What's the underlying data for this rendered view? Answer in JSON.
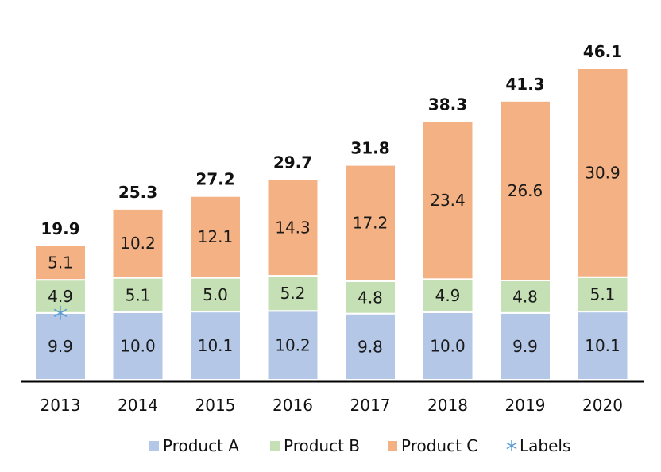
{
  "chart_data": {
    "type": "bar",
    "stacked": true,
    "categories": [
      "2013",
      "2014",
      "2015",
      "2016",
      "2017",
      "2018",
      "2019",
      "2020"
    ],
    "series": [
      {
        "name": "Product A",
        "color": "#b4c7e7",
        "values": [
          9.9,
          10.0,
          10.1,
          10.2,
          9.8,
          10.0,
          9.9,
          10.1
        ]
      },
      {
        "name": "Product B",
        "color": "#c5e0b4",
        "values": [
          4.9,
          5.1,
          5.0,
          5.2,
          4.8,
          4.9,
          4.8,
          5.1
        ]
      },
      {
        "name": "Product C",
        "color": "#f4b183",
        "values": [
          5.1,
          10.2,
          12.1,
          14.3,
          17.2,
          23.4,
          26.6,
          30.9
        ]
      }
    ],
    "segment_labels": [
      [
        "9.9",
        "10.0",
        "10.1",
        "10.2",
        "9.8",
        "10.0",
        "9.9",
        "10.1"
      ],
      [
        "4.9",
        "5.1",
        "5.0",
        "5.2",
        "4.8",
        "4.9",
        "4.8",
        "5.1"
      ],
      [
        "5.1",
        "10.2",
        "12.1",
        "14.3",
        "17.2",
        "23.4",
        "26.6",
        "30.9"
      ]
    ],
    "totals": [
      19.9,
      25.3,
      27.2,
      29.7,
      31.8,
      38.3,
      41.3,
      46.1
    ],
    "total_labels": [
      "19.9",
      "25.3",
      "27.2",
      "29.7",
      "31.8",
      "38.3",
      "41.3",
      "46.1"
    ],
    "labels_series": {
      "name": "Labels",
      "color": "#5b9bd5",
      "marker": "asterisk",
      "category_index": 0,
      "value": 9.9
    },
    "ylim": [
      0,
      46.1
    ],
    "grid": false,
    "legend_position": "bottom",
    "title": "",
    "xlabel": "",
    "ylabel": ""
  }
}
